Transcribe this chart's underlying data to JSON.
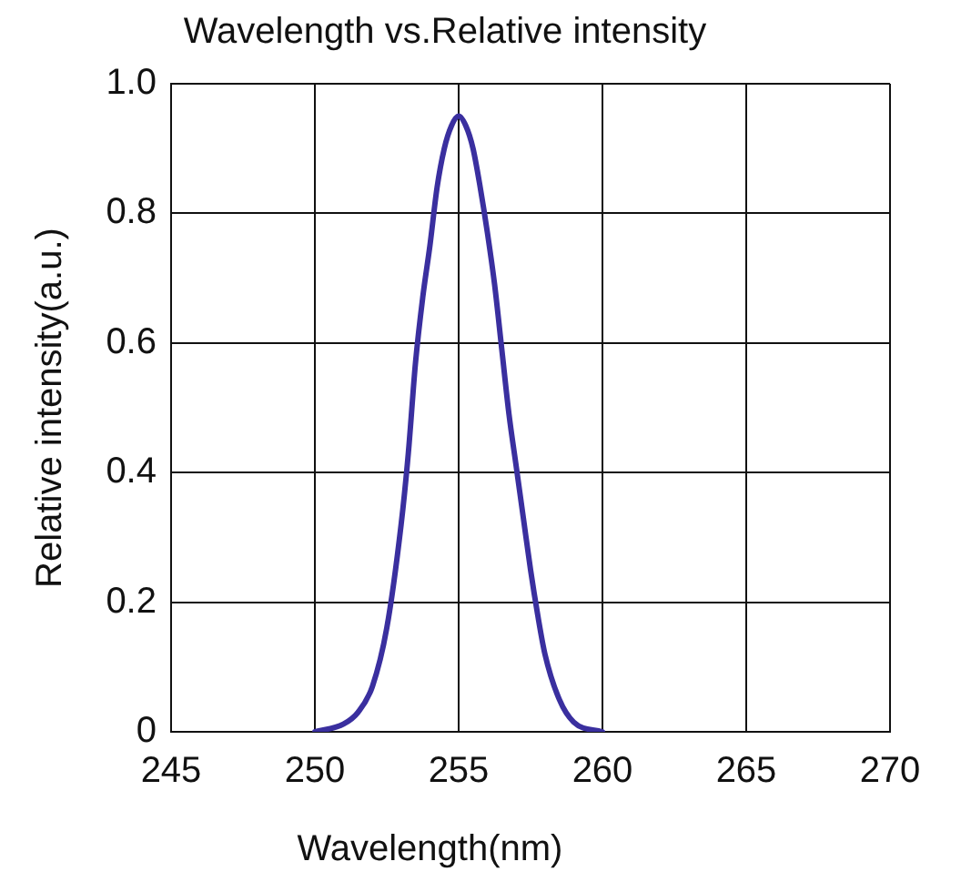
{
  "chart_data": {
    "type": "line",
    "title": "Wavelength vs.Relative intensity",
    "xlabel": "Wavelength(nm)",
    "ylabel": "Relative intensity(a.u.)",
    "x": [
      250,
      251,
      251.5,
      252,
      252.5,
      253,
      253.25,
      253.5,
      253.75,
      254,
      254.25,
      254.5,
      254.75,
      255,
      255.25,
      255.5,
      255.75,
      256,
      256.25,
      256.5,
      256.75,
      257,
      257.25,
      257.5,
      257.75,
      258,
      258.5,
      259,
      260
    ],
    "series": [
      {
        "color": "#3a2f9f",
        "values": [
          0,
          0.012,
          0.03,
          0.07,
          0.16,
          0.32,
          0.43,
          0.57,
          0.67,
          0.75,
          0.84,
          0.9,
          0.935,
          0.95,
          0.935,
          0.9,
          0.84,
          0.77,
          0.69,
          0.59,
          0.49,
          0.41,
          0.33,
          0.25,
          0.18,
          0.12,
          0.05,
          0.015,
          0
        ]
      }
    ],
    "xlim": [
      245,
      270
    ],
    "xticks": [
      245,
      250,
      255,
      260,
      265,
      270
    ],
    "ylim": [
      0,
      1
    ],
    "yticks": [
      0,
      {
        "value": 0.2,
        "label": "0.2"
      },
      {
        "value": 0.4,
        "label": "0.4"
      },
      {
        "value": 0.6,
        "label": "0.6"
      },
      {
        "value": 0.8,
        "label": "0.8"
      },
      {
        "value": 1,
        "label": "1.0"
      }
    ],
    "grid": true,
    "marker": "none",
    "line_style": "solid"
  }
}
